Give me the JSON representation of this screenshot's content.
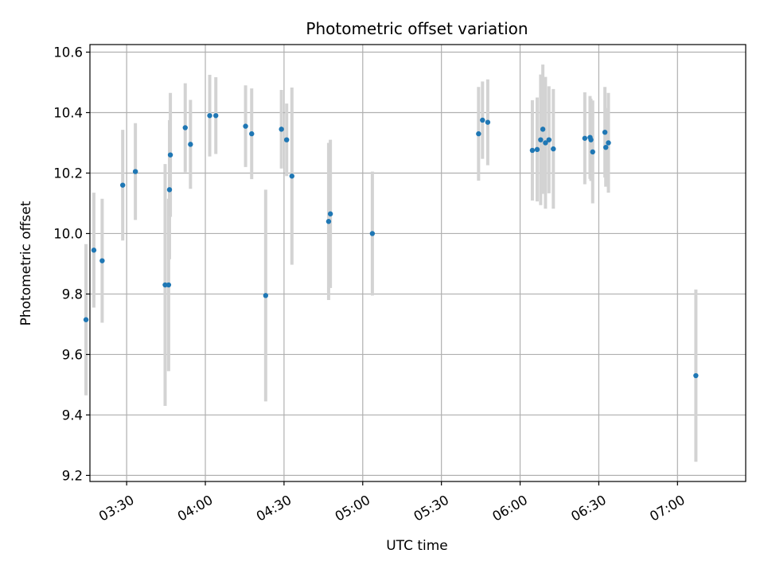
{
  "chart_data": {
    "type": "scatter",
    "title": "Photometric offset variation",
    "xlabel": "UTC time",
    "ylabel": "Photometric offset",
    "x_axis": {
      "type": "time",
      "range": [
        "03:16",
        "07:26"
      ],
      "ticks": [
        "03:30",
        "04:00",
        "04:30",
        "05:00",
        "05:30",
        "06:00",
        "06:30",
        "07:00"
      ]
    },
    "y_axis": {
      "range": [
        9.18,
        10.625
      ],
      "ticks": [
        "9.2",
        "9.4",
        "9.6",
        "9.8",
        "10.0",
        "10.2",
        "10.4",
        "10.6"
      ]
    },
    "grid": true,
    "legend": "none",
    "colors": {
      "point": "#1f77b4",
      "errorbar": "#d3d3d3",
      "grid": "#b0b0b0"
    },
    "series": [
      {
        "points": [
          {
            "t": "03:14:30",
            "y": 9.715,
            "err": 0.25
          },
          {
            "t": "03:17:30",
            "y": 9.945,
            "err": 0.19
          },
          {
            "t": "03:20:40",
            "y": 9.91,
            "err": 0.205
          },
          {
            "t": "03:28:30",
            "y": 10.16,
            "err": 0.183
          },
          {
            "t": "03:33:20",
            "y": 10.205,
            "err": 0.16
          },
          {
            "t": "03:44:40",
            "y": 9.83,
            "err": 0.4
          },
          {
            "t": "03:46:00",
            "y": 9.83,
            "err": 0.285
          },
          {
            "t": "03:46:20",
            "y": 10.145,
            "err": 0.23
          },
          {
            "t": "03:46:40",
            "y": 10.26,
            "err": 0.205
          },
          {
            "t": "03:52:20",
            "y": 10.35,
            "err": 0.147
          },
          {
            "t": "03:54:20",
            "y": 10.295,
            "err": 0.147
          },
          {
            "t": "04:01:40",
            "y": 10.39,
            "err": 0.135
          },
          {
            "t": "04:04:00",
            "y": 10.39,
            "err": 0.127
          },
          {
            "t": "04:15:20",
            "y": 10.355,
            "err": 0.135
          },
          {
            "t": "04:17:40",
            "y": 10.33,
            "err": 0.15
          },
          {
            "t": "04:23:00",
            "y": 9.795,
            "err": 0.35
          },
          {
            "t": "04:29:00",
            "y": 10.345,
            "err": 0.13
          },
          {
            "t": "04:31:00",
            "y": 10.31,
            "err": 0.12
          },
          {
            "t": "04:33:00",
            "y": 10.19,
            "err": 0.293
          },
          {
            "t": "04:47:00",
            "y": 10.04,
            "err": 0.26
          },
          {
            "t": "04:47:40",
            "y": 10.065,
            "err": 0.245
          },
          {
            "t": "05:03:40",
            "y": 10.0,
            "err": 0.205
          },
          {
            "t": "05:44:10",
            "y": 10.33,
            "err": 0.155
          },
          {
            "t": "05:45:40",
            "y": 10.375,
            "err": 0.128
          },
          {
            "t": "05:47:40",
            "y": 10.368,
            "err": 0.142
          },
          {
            "t": "06:04:40",
            "y": 10.275,
            "err": 0.166
          },
          {
            "t": "06:06:30",
            "y": 10.278,
            "err": 0.172
          },
          {
            "t": "06:07:50",
            "y": 10.31,
            "err": 0.216
          },
          {
            "t": "06:08:40",
            "y": 10.345,
            "err": 0.214
          },
          {
            "t": "06:09:40",
            "y": 10.3,
            "err": 0.218
          },
          {
            "t": "06:11:00",
            "y": 10.31,
            "err": 0.177
          },
          {
            "t": "06:12:40",
            "y": 10.28,
            "err": 0.198
          },
          {
            "t": "06:24:40",
            "y": 10.315,
            "err": 0.152
          },
          {
            "t": "06:26:40",
            "y": 10.318,
            "err": 0.137
          },
          {
            "t": "06:27:00",
            "y": 10.31,
            "err": 0.136
          },
          {
            "t": "06:27:40",
            "y": 10.27,
            "err": 0.17
          },
          {
            "t": "06:32:20",
            "y": 10.335,
            "err": 0.15
          },
          {
            "t": "06:32:40",
            "y": 10.285,
            "err": 0.13
          },
          {
            "t": "06:33:40",
            "y": 10.3,
            "err": 0.165
          },
          {
            "t": "07:07:00",
            "y": 9.53,
            "err": 0.285
          }
        ]
      }
    ]
  }
}
